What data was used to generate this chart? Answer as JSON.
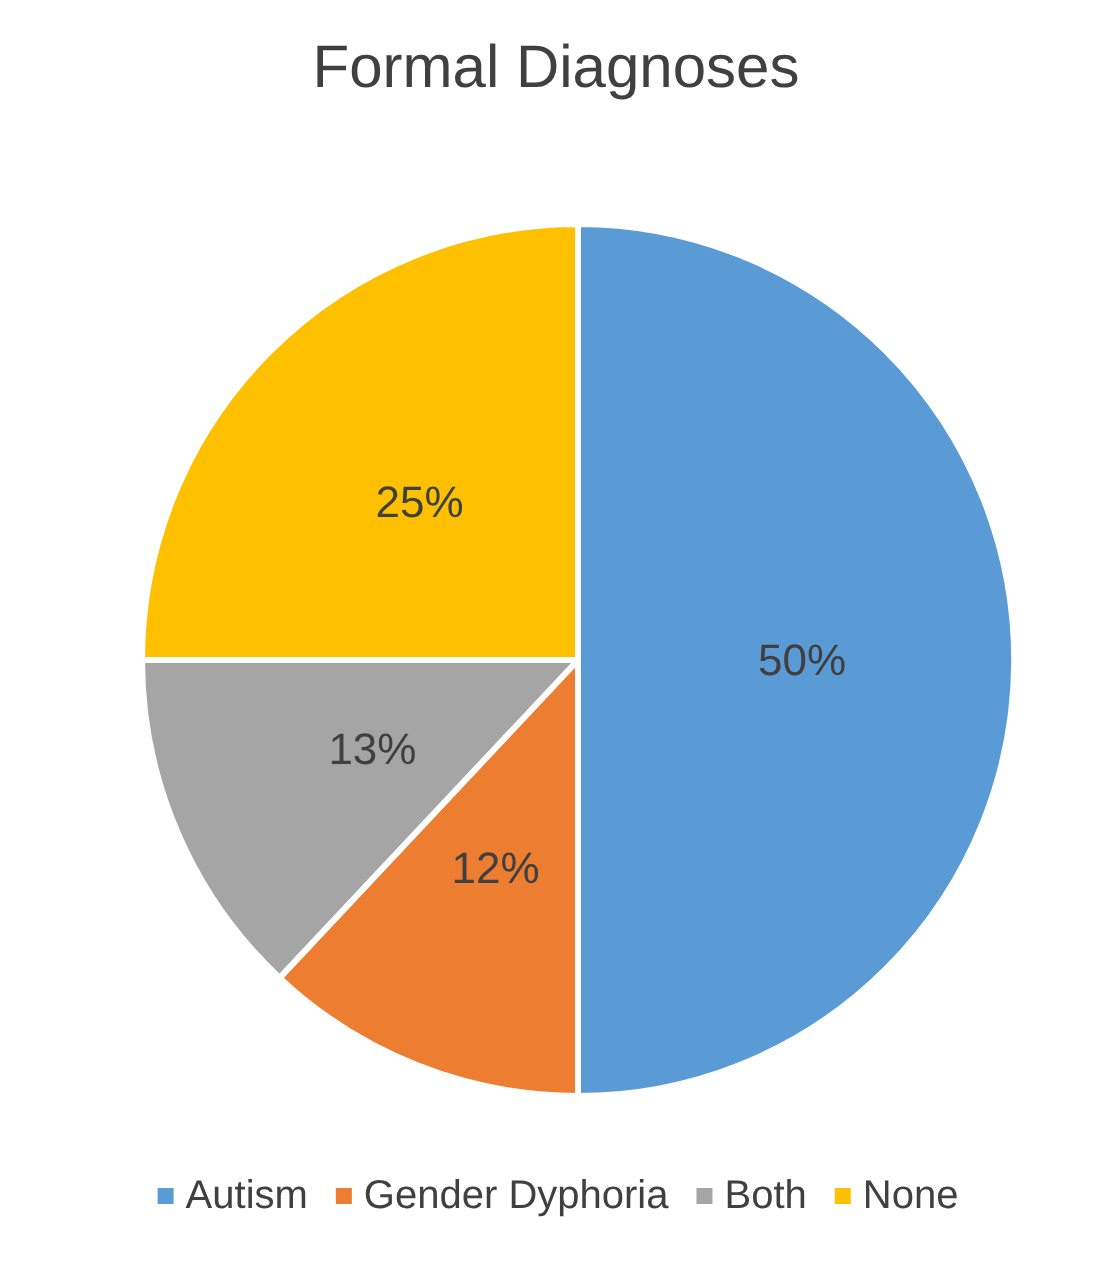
{
  "chart_data": {
    "type": "pie",
    "title": "Formal Diagnoses",
    "categories": [
      "Autism",
      "Gender Dyphoria",
      "Both",
      "None"
    ],
    "values": [
      50,
      12,
      13,
      25
    ],
    "colors": [
      "#5b9bd5",
      "#ed7d31",
      "#a5a5a5",
      "#ffc000"
    ],
    "value_labels": [
      "50%",
      "12%",
      "13%",
      "25%"
    ],
    "legend": "bottom"
  }
}
